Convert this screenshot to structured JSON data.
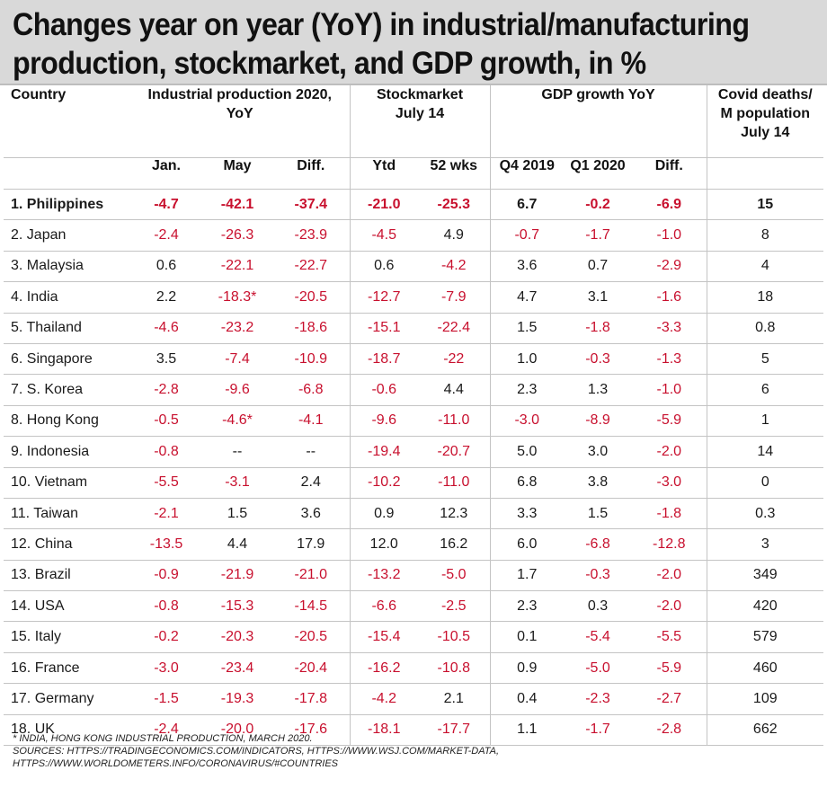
{
  "title": {
    "line1": "Changes year on year (YoY) in industrial/manufacturing",
    "line2": "production, stockmarket, and GDP growth, in %"
  },
  "header": {
    "country": "Country",
    "industrial_production": "Industrial production 2020,",
    "industrial_production_sub": "YoY",
    "stockmarket": "Stockmarket",
    "stockmarket_sub": "July 14",
    "gdp": "GDP growth YoY",
    "covid_line1": "Covid deaths/",
    "covid_line2": "M population",
    "covid_line3": "July 14",
    "sub": [
      "Jan.",
      "May",
      "Diff.",
      "Ytd",
      "52 wks",
      "Q4 2019",
      "Q1 2020",
      "Diff."
    ]
  },
  "colors": {
    "negative": "#c8102e",
    "title_bg": "#d9d9d9"
  },
  "rows": [
    {
      "country": "1. Philippines",
      "values": [
        "-4.7",
        "-42.1",
        "-37.4",
        "-21.0",
        "-25.3",
        "6.7",
        "-0.2",
        "-6.9",
        "15"
      ]
    },
    {
      "country": "2. Japan",
      "values": [
        "-2.4",
        "-26.3",
        "-23.9",
        "-4.5",
        "4.9",
        "-0.7",
        "-1.7",
        "-1.0",
        "8"
      ]
    },
    {
      "country": "3. Malaysia",
      "values": [
        "0.6",
        "-22.1",
        "-22.7",
        "0.6",
        "-4.2",
        "3.6",
        "0.7",
        "-2.9",
        "4"
      ]
    },
    {
      "country": "4. India",
      "values": [
        "2.2",
        "-18.3*",
        "-20.5",
        "-12.7",
        "-7.9",
        "4.7",
        "3.1",
        "-1.6",
        "18"
      ]
    },
    {
      "country": "5. Thailand",
      "values": [
        "-4.6",
        "-23.2",
        "-18.6",
        "-15.1",
        "-22.4",
        "1.5",
        "-1.8",
        "-3.3",
        "0.8"
      ]
    },
    {
      "country": "6. Singapore",
      "values": [
        "3.5",
        "-7.4",
        "-10.9",
        "-18.7",
        "-22",
        "1.0",
        "-0.3",
        "-1.3",
        "5"
      ]
    },
    {
      "country": "7. S. Korea",
      "values": [
        "-2.8",
        "-9.6",
        "-6.8",
        "-0.6",
        "4.4",
        "2.3",
        "1.3",
        "-1.0",
        "6"
      ]
    },
    {
      "country": "8. Hong Kong",
      "values": [
        "-0.5",
        "-4.6*",
        "-4.1",
        "-9.6",
        "-11.0",
        "-3.0",
        "-8.9",
        "-5.9",
        "1"
      ]
    },
    {
      "country": "9. Indonesia",
      "values": [
        "-0.8",
        "--",
        "--",
        "-19.4",
        "-20.7",
        "5.0",
        "3.0",
        "-2.0",
        "14"
      ]
    },
    {
      "country": "10. Vietnam",
      "values": [
        "-5.5",
        "-3.1",
        "2.4",
        "-10.2",
        "-11.0",
        "6.8",
        "3.8",
        "-3.0",
        "0"
      ]
    },
    {
      "country": "11. Taiwan",
      "values": [
        "-2.1",
        "1.5",
        "3.6",
        "0.9",
        "12.3",
        "3.3",
        "1.5",
        "-1.8",
        "0.3"
      ]
    },
    {
      "country": "12. China",
      "values": [
        "-13.5",
        "4.4",
        "17.9",
        "12.0",
        "16.2",
        "6.0",
        "-6.8",
        "-12.8",
        "3"
      ]
    },
    {
      "country": "13. Brazil",
      "values": [
        "-0.9",
        "-21.9",
        "-21.0",
        "-13.2",
        "-5.0",
        "1.7",
        "-0.3",
        "-2.0",
        "349"
      ]
    },
    {
      "country": "14. USA",
      "values": [
        "-0.8",
        "-15.3",
        "-14.5",
        "-6.6",
        "-2.5",
        "2.3",
        "0.3",
        "-2.0",
        "420"
      ]
    },
    {
      "country": "15. Italy",
      "values": [
        "-0.2",
        "-20.3",
        "-20.5",
        "-15.4",
        "-10.5",
        "0.1",
        "-5.4",
        "-5.5",
        "579"
      ]
    },
    {
      "country": "16. France",
      "values": [
        "-3.0",
        "-23.4",
        "-20.4",
        "-16.2",
        "-10.8",
        "0.9",
        "-5.0",
        "-5.9",
        "460"
      ]
    },
    {
      "country": "17. Germany",
      "values": [
        "-1.5",
        "-19.3",
        "-17.8",
        "-4.2",
        "2.1",
        "0.4",
        "-2.3",
        "-2.7",
        "109"
      ]
    },
    {
      "country": "18. UK",
      "values": [
        "-2.4",
        "-20.0",
        "-17.6",
        "-18.1",
        "-17.7",
        "1.1",
        "-1.7",
        "-2.8",
        "662"
      ]
    }
  ],
  "footnote": {
    "line1": "* INDIA, HONG KONG INDUSTRIAL PRODUCTION, MARCH 2020.",
    "line2": "SOURCES: HTTPS://TRADINGECONOMICS.COM/INDICATORS,   HTTPS://WWW.WSJ.COM/MARKET-DATA,",
    "line3": "HTTPS://WWW.WORLDOMETERS.INFO/CORONAVIRUS/#COUNTRIES"
  }
}
